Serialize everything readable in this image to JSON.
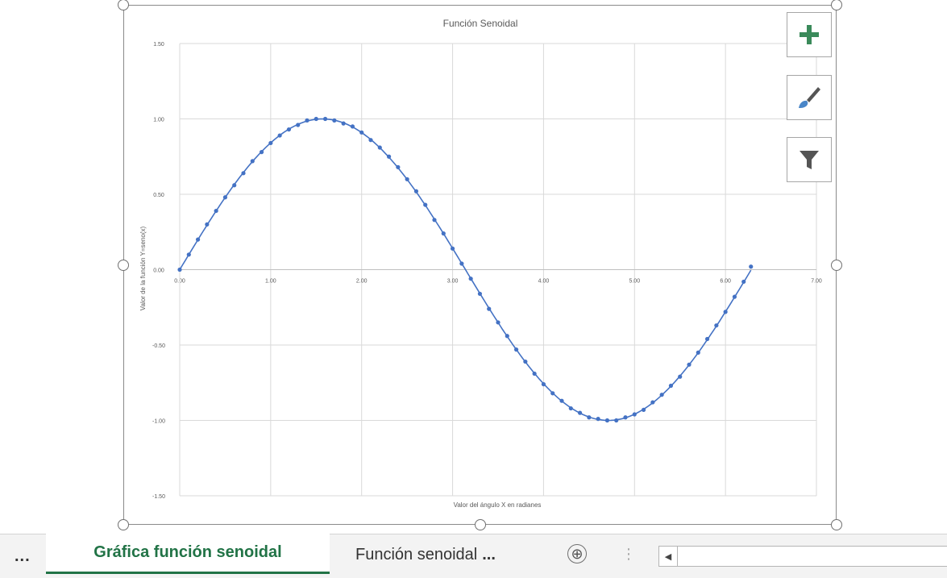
{
  "chart_data": {
    "type": "scatter",
    "title": "Función Senoidal",
    "xlabel": "Valor del ángulo X en radianes",
    "ylabel": "Valor de la función Y=seno(x)",
    "xlim": [
      0,
      7
    ],
    "ylim": [
      -1.5,
      1.5
    ],
    "x_ticks": [
      "0.00",
      "1.00",
      "2.00",
      "3.00",
      "4.00",
      "5.00",
      "6.00",
      "7.00"
    ],
    "y_ticks": [
      "1.50",
      "1.00",
      "0.50",
      "0.00",
      "-0.50",
      "-1.00",
      "-1.50"
    ],
    "grid": true,
    "series": [
      {
        "color": "#4472c4",
        "style": "markers-with-smooth-line",
        "x": [
          0,
          0.1,
          0.2,
          0.3,
          0.4,
          0.5,
          0.6,
          0.7,
          0.8,
          0.9,
          1.0,
          1.1,
          1.2,
          1.3,
          1.4,
          1.5,
          1.6,
          1.7,
          1.8,
          1.9,
          2.0,
          2.1,
          2.2,
          2.3,
          2.4,
          2.5,
          2.6,
          2.7,
          2.8,
          2.9,
          3.0,
          3.1,
          3.2,
          3.3,
          3.4,
          3.5,
          3.6,
          3.7,
          3.8,
          3.9,
          4.0,
          4.1,
          4.2,
          4.3,
          4.4,
          4.5,
          4.6,
          4.7,
          4.8,
          4.9,
          5.0,
          5.1,
          5.2,
          5.3,
          5.4,
          5.5,
          5.6,
          5.7,
          5.8,
          5.9,
          6.0,
          6.1,
          6.2,
          6.28
        ],
        "y": [
          0.0,
          0.1,
          0.2,
          0.3,
          0.39,
          0.48,
          0.56,
          0.64,
          0.72,
          0.78,
          0.84,
          0.89,
          0.93,
          0.96,
          0.99,
          1.0,
          1.0,
          0.99,
          0.97,
          0.95,
          0.91,
          0.86,
          0.81,
          0.75,
          0.68,
          0.6,
          0.52,
          0.43,
          0.33,
          0.24,
          0.14,
          0.04,
          -0.06,
          -0.16,
          -0.26,
          -0.35,
          -0.44,
          -0.53,
          -0.61,
          -0.69,
          -0.76,
          -0.82,
          -0.87,
          -0.92,
          -0.95,
          -0.98,
          -0.99,
          -1.0,
          -1.0,
          -0.98,
          -0.96,
          -0.93,
          -0.88,
          -0.83,
          -0.77,
          -0.71,
          -0.63,
          -0.55,
          -0.46,
          -0.37,
          -0.28,
          -0.18,
          -0.08,
          0.02
        ]
      }
    ]
  },
  "chart_tools": {
    "add_element_icon": "plus-icon",
    "style_icon": "brush-icon",
    "filter_icon": "funnel-icon"
  },
  "sheet_tabs": {
    "overflow_label": "...",
    "active": "Gráfica función senoidal",
    "inactive": "Función senoidal",
    "inactive_overflow": "...",
    "add_icon": "⊕",
    "accent_color": "#217346"
  }
}
